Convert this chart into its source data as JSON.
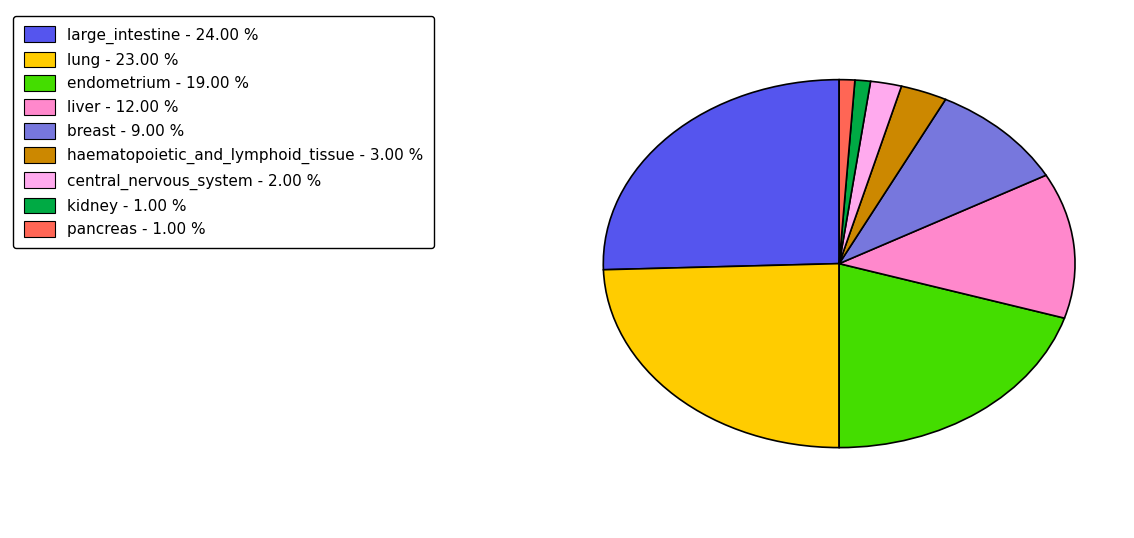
{
  "labels": [
    "large_intestine",
    "lung",
    "endometrium",
    "liver",
    "breast",
    "haematopoietic_and_lymphoid_tissue",
    "central_nervous_system",
    "kidney",
    "pancreas"
  ],
  "values": [
    24,
    23,
    19,
    12,
    9,
    3,
    2,
    1,
    1
  ],
  "colors": [
    "#5555ee",
    "#ffcc00",
    "#44dd00",
    "#ff88cc",
    "#7777dd",
    "#cc8800",
    "#ffaaee",
    "#00aa44",
    "#ff6655"
  ],
  "legend_labels": [
    "large_intestine - 24.00 %",
    "lung - 23.00 %",
    "endometrium - 19.00 %",
    "liver - 12.00 %",
    "breast - 9.00 %",
    "haematopoietic_and_lymphoid_tissue - 3.00 %",
    "central_nervous_system - 2.00 %",
    "kidney - 1.00 %",
    "pancreas - 1.00 %"
  ],
  "startangle": 90,
  "figsize": [
    11.34,
    5.38
  ],
  "dpi": 100
}
